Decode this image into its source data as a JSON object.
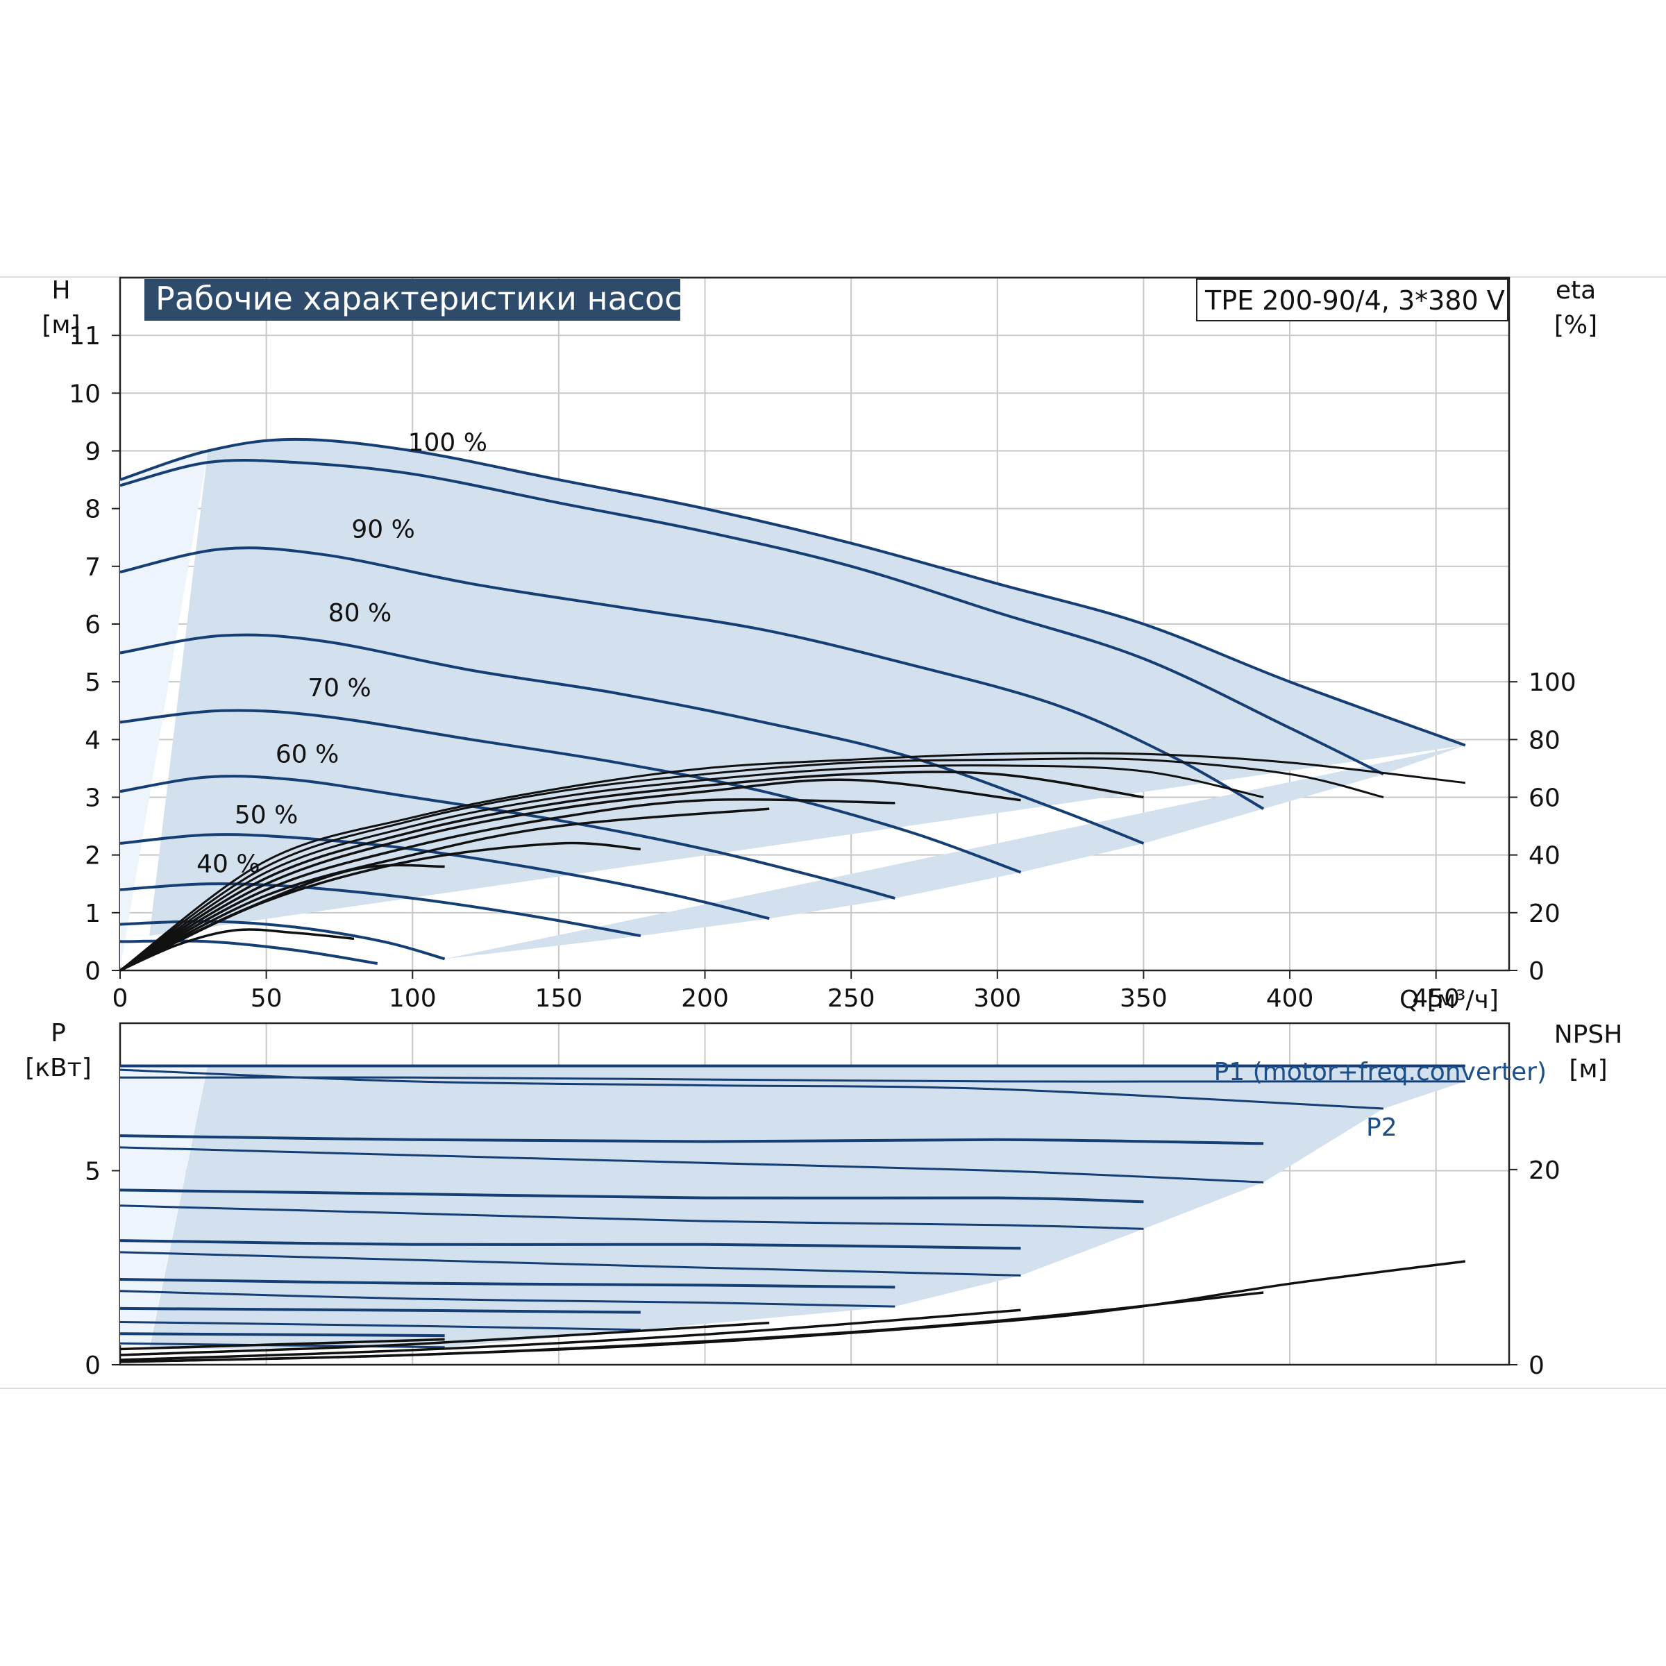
{
  "title": "Рабочие характеристики насоса",
  "model": "TPE 200-90/4, 3*380 V",
  "colors": {
    "curve_blue": "#153e75",
    "fill_blue": "#d3e0ee",
    "fill_light": "#edf4fb",
    "grid": "#c8c8c8",
    "eff_black": "#111111",
    "title_bg": "#2e4b6b"
  },
  "chart_data": [
    {
      "id": "head",
      "type": "line",
      "x_axis": {
        "label": "Q [м³/ч]",
        "range": [
          0,
          475
        ],
        "ticks": [
          0,
          50,
          100,
          150,
          200,
          250,
          300,
          350,
          400,
          450
        ]
      },
      "y_axis_left": {
        "label_top": "H",
        "label_unit": "[м]",
        "range": [
          0,
          12
        ],
        "ticks": [
          0,
          1,
          2,
          3,
          4,
          5,
          6,
          7,
          8,
          9,
          10,
          11
        ]
      },
      "y_axis_right": {
        "label_top": "eta",
        "label_unit": "[%]",
        "range": [
          0,
          100
        ],
        "ticks": [
          0,
          20,
          40,
          60,
          80,
          100
        ]
      },
      "speed_curves": [
        {
          "label": "100 %",
          "x": [
            0,
            30,
            60,
            100,
            150,
            200,
            250,
            300,
            350,
            400,
            460
          ],
          "y": [
            8.5,
            9.0,
            9.2,
            9.0,
            8.5,
            8.0,
            7.4,
            6.7,
            6.0,
            5.0,
            3.9
          ]
        },
        {
          "label": "",
          "x": [
            0,
            30,
            60,
            100,
            150,
            200,
            250,
            300,
            350,
            400,
            432
          ],
          "y": [
            8.4,
            8.8,
            8.8,
            8.6,
            8.1,
            7.6,
            7.0,
            6.2,
            5.4,
            4.2,
            3.4
          ]
        },
        {
          "label": "90 %",
          "x": [
            0,
            35,
            70,
            120,
            170,
            220,
            270,
            320,
            360,
            391
          ],
          "y": [
            6.9,
            7.3,
            7.2,
            6.7,
            6.3,
            5.9,
            5.3,
            4.6,
            3.7,
            2.8
          ]
        },
        {
          "label": "80 %",
          "x": [
            0,
            35,
            70,
            120,
            170,
            220,
            270,
            320,
            350
          ],
          "y": [
            5.5,
            5.8,
            5.7,
            5.2,
            4.8,
            4.3,
            3.7,
            2.8,
            2.2
          ]
        },
        {
          "label": "70 %",
          "x": [
            0,
            35,
            70,
            120,
            170,
            220,
            270,
            308
          ],
          "y": [
            4.3,
            4.5,
            4.4,
            4.0,
            3.6,
            3.1,
            2.4,
            1.7
          ]
        },
        {
          "label": "60 %",
          "x": [
            0,
            30,
            60,
            100,
            150,
            200,
            240,
            265
          ],
          "y": [
            3.1,
            3.35,
            3.3,
            3.0,
            2.6,
            2.1,
            1.6,
            1.25
          ]
        },
        {
          "label": "50 %",
          "x": [
            0,
            30,
            60,
            100,
            150,
            190,
            222
          ],
          "y": [
            2.2,
            2.35,
            2.3,
            2.1,
            1.7,
            1.3,
            0.9
          ]
        },
        {
          "label": "40 %",
          "x": [
            0,
            30,
            60,
            100,
            140,
            178
          ],
          "y": [
            1.4,
            1.5,
            1.45,
            1.25,
            0.95,
            0.6
          ]
        },
        {
          "label": "",
          "x": [
            0,
            30,
            60,
            90,
            111
          ],
          "y": [
            0.8,
            0.85,
            0.75,
            0.5,
            0.2
          ]
        },
        {
          "label": "",
          "x": [
            0,
            30,
            60,
            88
          ],
          "y": [
            0.5,
            0.5,
            0.35,
            0.12
          ]
        }
      ],
      "efficiency_curves": [
        {
          "label": "",
          "x": [
            0,
            50,
            100,
            150,
            200,
            250,
            300,
            350,
            400,
            460
          ],
          "y": [
            0,
            38,
            53,
            63,
            70,
            73,
            75,
            75,
            72,
            65
          ]
        },
        {
          "label": "",
          "x": [
            0,
            50,
            100,
            150,
            200,
            250,
            300,
            350,
            400,
            432
          ],
          "y": [
            0,
            36,
            52,
            62,
            68,
            72,
            73,
            73,
            68,
            60
          ]
        },
        {
          "label": "",
          "x": [
            0,
            50,
            100,
            150,
            200,
            250,
            300,
            350,
            391
          ],
          "y": [
            0,
            34,
            50,
            60,
            66,
            70,
            71,
            69,
            60
          ]
        },
        {
          "label": "",
          "x": [
            0,
            50,
            100,
            150,
            200,
            250,
            300,
            350
          ],
          "y": [
            0,
            32,
            48,
            58,
            64,
            68,
            68,
            60
          ]
        },
        {
          "label": "",
          "x": [
            0,
            50,
            100,
            150,
            200,
            250,
            308
          ],
          "y": [
            0,
            30,
            46,
            56,
            62,
            66,
            59
          ]
        },
        {
          "label": "",
          "x": [
            0,
            50,
            100,
            150,
            200,
            265
          ],
          "y": [
            0,
            28,
            43,
            53,
            59,
            58
          ]
        },
        {
          "label": "",
          "x": [
            0,
            50,
            100,
            150,
            222
          ],
          "y": [
            0,
            26,
            40,
            50,
            56
          ]
        },
        {
          "label": "",
          "x": [
            0,
            50,
            100,
            150,
            178
          ],
          "y": [
            0,
            24,
            38,
            44,
            42
          ]
        },
        {
          "label": "",
          "x": [
            0,
            40,
            80,
            111
          ],
          "y": [
            0,
            20,
            35,
            36
          ]
        },
        {
          "label": "",
          "x": [
            0,
            20,
            40,
            60,
            80
          ],
          "y": [
            0,
            9,
            14,
            13,
            11
          ]
        }
      ],
      "curve_labels_position_hint": "above each speed curve near left side"
    },
    {
      "id": "power",
      "type": "line",
      "x_axis": {
        "label": "",
        "range": [
          0,
          475
        ],
        "ticks": []
      },
      "y_axis_left": {
        "label_top": "P",
        "label_unit": "[кВт]",
        "range": [
          0,
          8.8
        ],
        "ticks": [
          0,
          5
        ]
      },
      "y_axis_right": {
        "label_top": "NPSH",
        "label_unit": "[м]",
        "range": [
          0,
          35
        ],
        "ticks": [
          0,
          20
        ]
      },
      "legend": [
        {
          "name": "P1 (motor+freq.converter)",
          "position": "top-right"
        },
        {
          "name": "P2",
          "position": "right"
        }
      ],
      "p1_curves": [
        {
          "x": [
            0,
            50,
            100,
            200,
            300,
            400,
            460
          ],
          "y": [
            7.7,
            7.7,
            7.7,
            7.7,
            7.7,
            7.7,
            7.7
          ]
        },
        {
          "x": [
            0,
            100,
            200,
            300,
            391
          ],
          "y": [
            5.9,
            5.8,
            5.75,
            5.8,
            5.7
          ]
        },
        {
          "x": [
            0,
            100,
            200,
            300,
            350
          ],
          "y": [
            4.5,
            4.4,
            4.3,
            4.3,
            4.2
          ]
        },
        {
          "x": [
            0,
            100,
            200,
            308
          ],
          "y": [
            3.2,
            3.1,
            3.1,
            3.0
          ]
        },
        {
          "x": [
            0,
            100,
            200,
            265
          ],
          "y": [
            2.2,
            2.1,
            2.05,
            2.0
          ]
        },
        {
          "x": [
            0,
            100,
            178
          ],
          "y": [
            1.45,
            1.4,
            1.35
          ]
        },
        {
          "x": [
            0,
            111
          ],
          "y": [
            0.8,
            0.75
          ]
        }
      ],
      "p2_curves": [
        {
          "x": [
            0,
            100,
            200,
            300,
            400,
            460
          ],
          "y": [
            7.4,
            7.4,
            7.35,
            7.3,
            7.3,
            7.3
          ]
        },
        {
          "x": [
            0,
            100,
            200,
            300,
            432
          ],
          "y": [
            7.6,
            7.3,
            7.2,
            7.1,
            6.6
          ]
        },
        {
          "x": [
            0,
            100,
            200,
            300,
            391
          ],
          "y": [
            5.6,
            5.4,
            5.2,
            5.0,
            4.7
          ]
        },
        {
          "x": [
            0,
            100,
            200,
            300,
            350
          ],
          "y": [
            4.1,
            3.9,
            3.7,
            3.6,
            3.5
          ]
        },
        {
          "x": [
            0,
            100,
            200,
            308
          ],
          "y": [
            2.9,
            2.7,
            2.5,
            2.3
          ]
        },
        {
          "x": [
            0,
            100,
            200,
            265
          ],
          "y": [
            1.9,
            1.7,
            1.6,
            1.5
          ]
        },
        {
          "x": [
            0,
            100,
            178
          ],
          "y": [
            1.1,
            1.0,
            0.9
          ]
        },
        {
          "x": [
            0,
            111
          ],
          "y": [
            0.55,
            0.45
          ]
        }
      ],
      "npsh_curves": [
        {
          "x": [
            0,
            100,
            200,
            300,
            350,
            400,
            460
          ],
          "y": [
            0.3,
            1.0,
            2.3,
            4.4,
            6.0,
            8.3,
            10.6
          ]
        },
        {
          "x": [
            0,
            100,
            200,
            300,
            391
          ],
          "y": [
            0.3,
            1.0,
            2.4,
            4.5,
            7.4
          ]
        },
        {
          "x": [
            0,
            100,
            200,
            308
          ],
          "y": [
            0.5,
            1.5,
            3.1,
            5.6
          ]
        },
        {
          "x": [
            0,
            100,
            222
          ],
          "y": [
            1.0,
            2.1,
            4.3
          ]
        },
        {
          "x": [
            0,
            111
          ],
          "y": [
            1.6,
            2.6
          ]
        }
      ]
    }
  ]
}
